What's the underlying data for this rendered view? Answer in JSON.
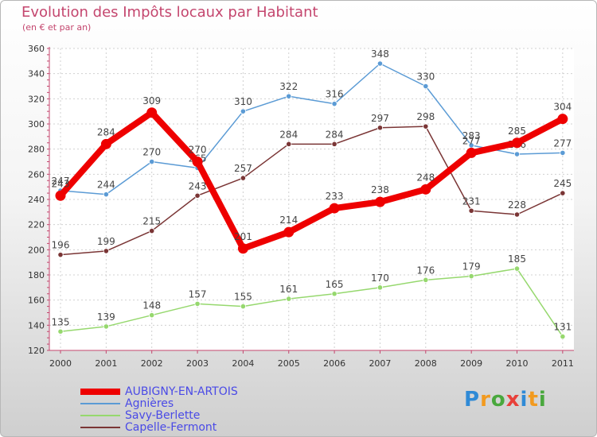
{
  "header": {
    "title": "Evolution des Impôts locaux par Habitant",
    "subtitle": "(en € et par an)"
  },
  "chart_data": {
    "type": "line",
    "title": "Evolution des Impôts locaux par Habitant",
    "subtitle": "(en € et par an)",
    "xlabel": "",
    "ylabel": "",
    "x": [
      "2000",
      "2001",
      "2002",
      "2003",
      "2004",
      "2005",
      "2006",
      "2007",
      "2008",
      "2009",
      "2010",
      "2011"
    ],
    "ylim": [
      120,
      360
    ],
    "yticks": [
      120,
      140,
      160,
      180,
      200,
      220,
      240,
      260,
      280,
      300,
      320,
      340,
      360
    ],
    "grid": true,
    "legend_position": "bottom-left",
    "series": [
      {
        "name": "Agnières",
        "color": "#5b9bd5",
        "values": [
          247,
          244,
          270,
          265,
          310,
          322,
          316,
          348,
          330,
          283,
          276,
          277
        ],
        "labels": [
          "247",
          "244",
          "270",
          "265",
          "310",
          "322",
          "316",
          "348",
          "330",
          "283",
          "276",
          "277"
        ]
      },
      {
        "name": "Savy-Berlette",
        "color": "#96d86e",
        "values": [
          135,
          139,
          148,
          157,
          155,
          161,
          165,
          170,
          176,
          179,
          185,
          131
        ],
        "labels": [
          "135",
          "139",
          "148",
          "157",
          "155",
          "161",
          "165",
          "170",
          "176",
          "179",
          "185",
          "131"
        ]
      },
      {
        "name": "Capelle-Fermont",
        "color": "#7a3535",
        "values": [
          196,
          199,
          215,
          243,
          257,
          284,
          284,
          297,
          298,
          231,
          228,
          245
        ],
        "labels": [
          "196",
          "199",
          "215",
          "243",
          "257",
          "284",
          "284",
          "297",
          "298",
          "231",
          "228",
          "245"
        ]
      },
      {
        "name": "AUBIGNY-EN-ARTOIS",
        "color": "#ee0000",
        "values": [
          243,
          284,
          309,
          270,
          201,
          214,
          233,
          238,
          248,
          277,
          285,
          304
        ],
        "labels": [
          "243",
          "284",
          "309",
          "270",
          "201",
          "214",
          "233",
          "238",
          "248",
          "277",
          "285",
          "304"
        ]
      }
    ]
  },
  "legend": {
    "items": [
      {
        "label": "AUBIGNY-EN-ARTOIS",
        "color": "#ee0000"
      },
      {
        "label": "Agnières",
        "color": "#5b9bd5"
      },
      {
        "label": "Savy-Berlette",
        "color": "#96d86e"
      },
      {
        "label": "Capelle-Fermont",
        "color": "#7a3535"
      }
    ]
  },
  "logo": {
    "letters": [
      "P",
      "r",
      "o",
      "x",
      "i",
      "t",
      "i"
    ],
    "colors": [
      "#2f8ad6",
      "#f29a1f",
      "#49a83d",
      "#e8403a",
      "#2f8ad6",
      "#f29a1f",
      "#49a83d"
    ]
  }
}
